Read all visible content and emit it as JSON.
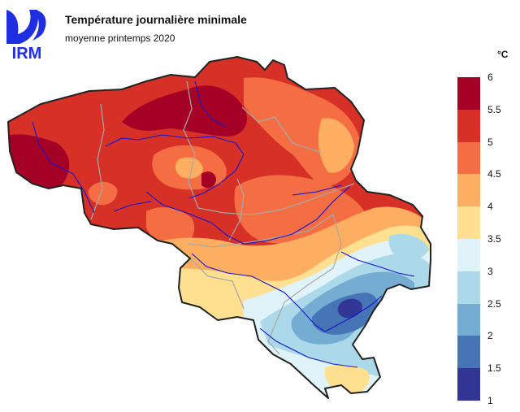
{
  "logo": {
    "text": "IRM",
    "icon": "irm-logo-icon",
    "color": "#1f2ee0"
  },
  "title": "Température journalière minimale",
  "subtitle": "moyenne printemps 2020",
  "legend": {
    "unit": "°C",
    "labels": [
      "6",
      "5.5",
      "5",
      "4.5",
      "4",
      "3.5",
      "3",
      "2.5",
      "2",
      "1.5",
      "1"
    ],
    "colors": [
      "#a50026",
      "#d73027",
      "#f46d43",
      "#fdae61",
      "#fee090",
      "#e0f3f8",
      "#abd9e9",
      "#74add1",
      "#4575b4",
      "#313695"
    ]
  },
  "map": {
    "region": "Belgique",
    "border_color": "#222222",
    "province_border_color": "#a8a8a8",
    "river_color": "#1414d2"
  }
}
